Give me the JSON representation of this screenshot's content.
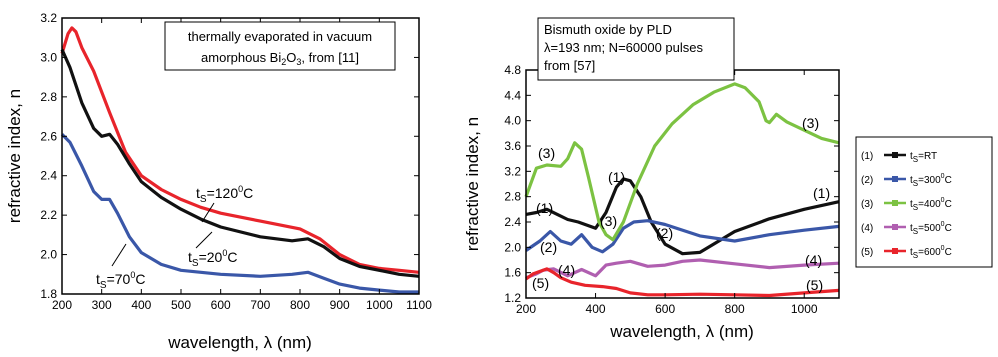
{
  "chart_data": [
    {
      "type": "line",
      "xlabel": "wavelength, λ (nm)",
      "ylabel": "refractive index, n",
      "xlim": [
        200,
        1100
      ],
      "ylim": [
        1.8,
        3.2
      ],
      "xticks": [
        200,
        300,
        400,
        500,
        600,
        700,
        800,
        900,
        1000,
        1100
      ],
      "yticks": [
        1.8,
        2.0,
        2.2,
        2.4,
        2.6,
        2.8,
        3.0,
        3.2
      ],
      "note": {
        "line1": "thermally evaporated in vacuum",
        "line2_a": "amorphous Bi",
        "line2_sub": "2",
        "line2_b": "O",
        "line2_sub2": "3",
        "line2_c": ", from [11]"
      },
      "series": [
        {
          "name": "t_S=120°C",
          "color": "#e8242b",
          "x": [
            200,
            215,
            225,
            235,
            250,
            280,
            320,
            360,
            400,
            450,
            500,
            550,
            600,
            700,
            800,
            850,
            900,
            950,
            1000,
            1050,
            1100
          ],
          "y": [
            3.02,
            3.12,
            3.15,
            3.13,
            3.05,
            2.93,
            2.72,
            2.52,
            2.4,
            2.33,
            2.28,
            2.24,
            2.21,
            2.17,
            2.13,
            2.08,
            2.0,
            1.95,
            1.93,
            1.92,
            1.91
          ]
        },
        {
          "name": "t_S=20°C",
          "color": "#111111",
          "x": [
            200,
            220,
            250,
            280,
            300,
            320,
            340,
            370,
            400,
            450,
            500,
            550,
            600,
            700,
            780,
            820,
            860,
            900,
            950,
            1000,
            1050,
            1100
          ],
          "y": [
            3.04,
            2.95,
            2.77,
            2.64,
            2.6,
            2.61,
            2.56,
            2.46,
            2.37,
            2.29,
            2.23,
            2.18,
            2.14,
            2.09,
            2.07,
            2.08,
            2.04,
            1.98,
            1.94,
            1.92,
            1.9,
            1.89
          ]
        },
        {
          "name": "t_S=70°C",
          "color": "#3a57a8",
          "x": [
            200,
            220,
            250,
            280,
            300,
            320,
            340,
            370,
            400,
            450,
            500,
            600,
            700,
            780,
            820,
            860,
            900,
            950,
            1000,
            1050,
            1100
          ],
          "y": [
            2.61,
            2.57,
            2.45,
            2.32,
            2.28,
            2.28,
            2.21,
            2.09,
            2.01,
            1.95,
            1.92,
            1.9,
            1.89,
            1.9,
            1.91,
            1.88,
            1.85,
            1.83,
            1.82,
            1.81,
            1.81
          ]
        }
      ],
      "labels": {
        "t120": "120",
        "t20": "20",
        "t70": "70",
        "deg": "0",
        "unit": "C",
        "t": "t",
        "sub": "S",
        "eq": "="
      }
    },
    {
      "type": "line",
      "xlabel": "wavelength, λ (nm)",
      "ylabel": "refractive index, n",
      "xlim": [
        200,
        1100
      ],
      "ylim": [
        1.2,
        4.8
      ],
      "xticks": [
        200,
        400,
        600,
        800,
        1000
      ],
      "yticks": [
        1.2,
        1.6,
        2.0,
        2.4,
        2.8,
        3.2,
        3.6,
        4.0,
        4.4,
        4.8
      ],
      "note": {
        "line1": "Bismuth oxide by PLD",
        "line2": "λ=193 nm; N=60000 pulses",
        "line3": "from [57]"
      },
      "series": [
        {
          "name": "(1)",
          "color": "#111111",
          "x": [
            200,
            230,
            260,
            290,
            320,
            350,
            400,
            430,
            460,
            480,
            500,
            530,
            560,
            600,
            650,
            700,
            800,
            900,
            1000,
            1100
          ],
          "y": [
            2.52,
            2.55,
            2.6,
            2.52,
            2.44,
            2.4,
            2.3,
            2.55,
            2.95,
            3.08,
            3.05,
            2.8,
            2.4,
            2.05,
            1.9,
            1.92,
            2.25,
            2.45,
            2.6,
            2.72
          ]
        },
        {
          "name": "(2)",
          "color": "#3a57a8",
          "x": [
            200,
            240,
            270,
            300,
            330,
            360,
            390,
            420,
            450,
            480,
            510,
            550,
            600,
            700,
            800,
            900,
            1000,
            1100
          ],
          "y": [
            1.95,
            2.1,
            2.25,
            2.1,
            2.05,
            2.2,
            2.0,
            1.93,
            2.05,
            2.3,
            2.4,
            2.42,
            2.36,
            2.18,
            2.1,
            2.2,
            2.27,
            2.33
          ]
        },
        {
          "name": "(3)",
          "color": "#7cc242",
          "x": [
            200,
            230,
            260,
            300,
            320,
            340,
            360,
            380,
            410,
            430,
            450,
            480,
            520,
            570,
            620,
            680,
            740,
            800,
            830,
            870,
            890,
            900,
            920,
            950,
            1000,
            1050,
            1100
          ],
          "y": [
            2.8,
            3.25,
            3.3,
            3.28,
            3.4,
            3.65,
            3.55,
            3.1,
            2.4,
            2.2,
            2.12,
            2.4,
            3.0,
            3.6,
            3.95,
            4.25,
            4.45,
            4.58,
            4.52,
            4.3,
            4.0,
            3.97,
            4.1,
            3.98,
            3.85,
            3.72,
            3.65
          ]
        },
        {
          "name": "(4)",
          "color": "#b05fb0",
          "x": [
            200,
            230,
            250,
            280,
            320,
            360,
            400,
            430,
            460,
            500,
            550,
            600,
            650,
            700,
            800,
            900,
            1000,
            1100
          ],
          "y": [
            1.52,
            1.58,
            1.64,
            1.66,
            1.55,
            1.65,
            1.55,
            1.72,
            1.75,
            1.78,
            1.7,
            1.72,
            1.78,
            1.8,
            1.74,
            1.68,
            1.72,
            1.75
          ]
        },
        {
          "name": "(5)",
          "color": "#e8242b",
          "x": [
            200,
            220,
            240,
            260,
            280,
            300,
            330,
            370,
            420,
            460,
            500,
            550,
            600,
            700,
            800,
            900,
            1000,
            1100
          ],
          "y": [
            1.5,
            1.58,
            1.62,
            1.66,
            1.6,
            1.52,
            1.45,
            1.4,
            1.38,
            1.35,
            1.28,
            1.25,
            1.25,
            1.26,
            1.25,
            1.24,
            1.28,
            1.32
          ]
        }
      ],
      "plot_labels": [
        "(1)",
        "(1)",
        "(1)",
        "(2)",
        "(2)",
        "(3)",
        "(3)",
        "(3)",
        "(4)",
        "(4)",
        "(5)",
        "(5)"
      ],
      "legend": [
        {
          "num": "(1)",
          "t": "t",
          "sub": "S",
          "val": "=RT",
          "sup": "",
          "unit": "",
          "color": "#111111"
        },
        {
          "num": "(2)",
          "t": "t",
          "sub": "S",
          "val": "=300",
          "sup": "0",
          "unit": "C",
          "color": "#3a57a8"
        },
        {
          "num": "(3)",
          "t": "t",
          "sub": "S",
          "val": "=400",
          "sup": "0",
          "unit": "C",
          "color": "#7cc242"
        },
        {
          "num": "(4)",
          "t": "t",
          "sub": "S",
          "val": "=500",
          "sup": "0",
          "unit": "C",
          "color": "#b05fb0"
        },
        {
          "num": "(5)",
          "t": "t",
          "sub": "S",
          "val": "=600",
          "sup": "0",
          "unit": "C",
          "color": "#e8242b"
        }
      ]
    }
  ]
}
